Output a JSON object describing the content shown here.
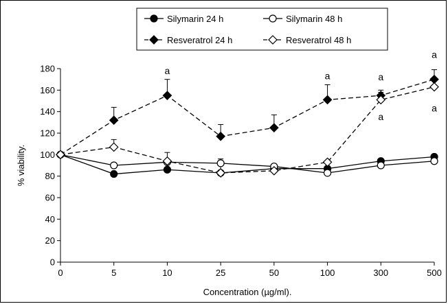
{
  "chart_data": {
    "type": "line",
    "categories": [
      "0",
      "5",
      "10",
      "25",
      "50",
      "100",
      "300",
      "500"
    ],
    "xlabel": "Concentration (µg/ml).",
    "ylabel": "% viability.",
    "ylim": [
      0,
      180
    ],
    "yticks": [
      "0",
      "20",
      "40",
      "60",
      "80",
      "100",
      "120",
      "140",
      "160",
      "180"
    ],
    "grid": false,
    "legend_position": "top-center",
    "series": [
      {
        "name": "Silymarin 24 h",
        "marker": "circle-filled",
        "line": "solid",
        "values": [
          100,
          82,
          86,
          83,
          87,
          87,
          94,
          98
        ],
        "err": [
          0,
          0,
          6,
          0,
          0,
          0,
          0,
          0
        ]
      },
      {
        "name": "Silymarin 48 h",
        "marker": "circle-open",
        "line": "solid",
        "values": [
          100,
          90,
          93,
          92,
          89,
          83,
          90,
          94
        ],
        "err": [
          0,
          0,
          0,
          4,
          0,
          0,
          0,
          0
        ]
      },
      {
        "name": "Resveratrol 24 h",
        "marker": "diamond-filled",
        "line": "dashed",
        "values": [
          100,
          132,
          155,
          117,
          125,
          151,
          155,
          170
        ],
        "err": [
          0,
          12,
          15,
          11,
          12,
          14,
          5,
          9
        ]
      },
      {
        "name": "Resveratrol 48 h",
        "marker": "diamond-open",
        "line": "dashed",
        "values": [
          100,
          107,
          94,
          83,
          85,
          93,
          151,
          163
        ],
        "err": [
          0,
          7,
          8,
          8,
          6,
          0,
          7,
          7
        ]
      }
    ],
    "annotations": [
      {
        "text": "a",
        "category": "10",
        "y": 175
      },
      {
        "text": "a",
        "category": "100",
        "y": 170
      },
      {
        "text": "a",
        "category": "300",
        "y": 169
      },
      {
        "text": "a",
        "category": "300",
        "y": 132
      },
      {
        "text": "a",
        "category": "500",
        "y": 190
      },
      {
        "text": "a",
        "category": "500",
        "y": 140
      }
    ]
  }
}
